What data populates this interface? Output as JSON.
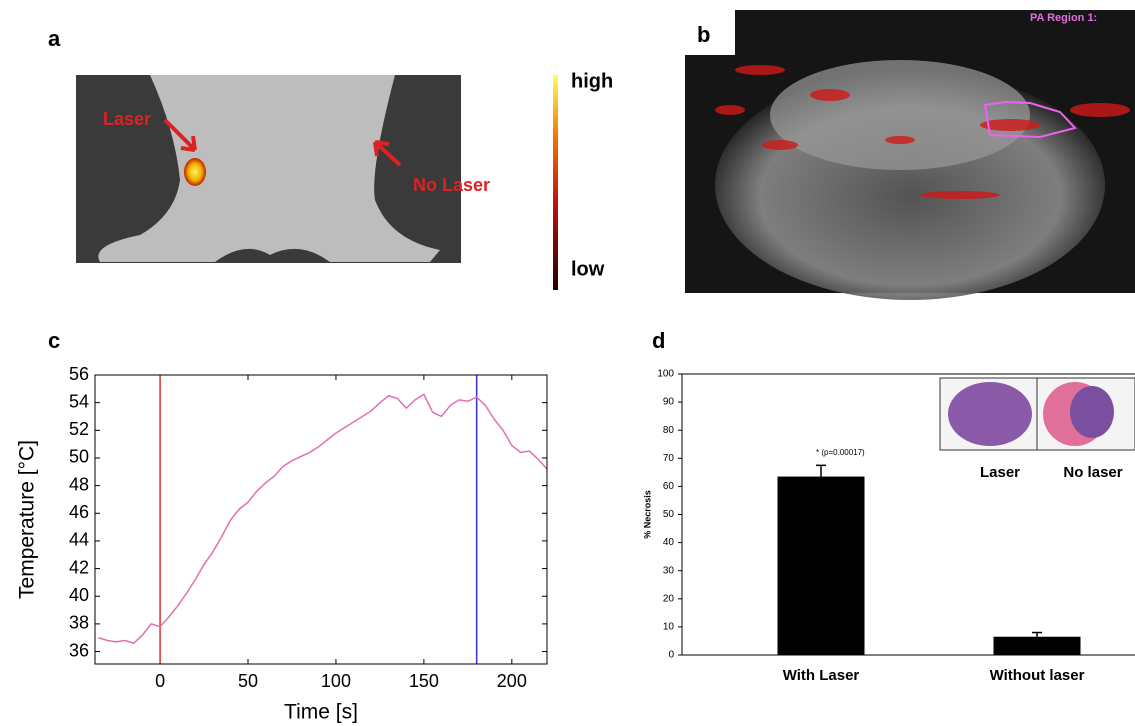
{
  "panel_labels": [
    "a",
    "b",
    "c",
    "d"
  ],
  "panel_a": {
    "arrow_labels": [
      "Laser",
      "No Laser"
    ],
    "colorbar_labels": [
      "high",
      "low"
    ]
  },
  "panel_b": {
    "region_label": "PA Region 1:"
  },
  "chart_data": [
    {
      "type": "line",
      "xlabel": "Time [s]",
      "ylabel": "Temperature [°C]",
      "xlim": [
        -37,
        220
      ],
      "ylim": [
        35.1,
        56
      ],
      "xticks": [
        0,
        50,
        100,
        150,
        200
      ],
      "yticks": [
        36,
        38,
        40,
        42,
        44,
        46,
        48,
        50,
        52,
        54,
        56
      ],
      "color": "#e070b0",
      "x": [
        -35,
        -30,
        -25,
        -20,
        -15,
        -10,
        -5,
        0,
        5,
        10,
        15,
        20,
        25,
        30,
        35,
        40,
        45,
        50,
        55,
        60,
        65,
        70,
        75,
        80,
        85,
        90,
        95,
        100,
        105,
        110,
        115,
        120,
        125,
        130,
        135,
        140,
        145,
        150,
        155,
        160,
        165,
        170,
        175,
        180,
        185,
        190,
        195,
        200,
        205,
        210,
        215,
        220
      ],
      "values": [
        37.0,
        36.8,
        36.7,
        36.8,
        36.6,
        37.2,
        38.0,
        37.8,
        38.5,
        39.3,
        40.2,
        41.2,
        42.3,
        43.2,
        44.3,
        45.5,
        46.3,
        46.8,
        47.6,
        48.2,
        48.7,
        49.4,
        49.8,
        50.1,
        50.4,
        50.8,
        51.3,
        51.8,
        52.2,
        52.6,
        53.0,
        53.4,
        54.0,
        54.5,
        54.3,
        53.6,
        54.2,
        54.6,
        53.3,
        53.0,
        53.8,
        54.2,
        54.1,
        54.4,
        53.8,
        52.8,
        52.0,
        50.9,
        50.4,
        50.5,
        49.9,
        49.2
      ],
      "vlines": [
        {
          "x": 0,
          "color": "#e03030"
        },
        {
          "x": 180,
          "color": "#3030d0"
        }
      ]
    },
    {
      "type": "bar",
      "ylabel": "% Necrosis",
      "categories": [
        "With Laser",
        "Without laser"
      ],
      "values": [
        63.5,
        6.5
      ],
      "errors": [
        4,
        1.5
      ],
      "color": "#000000",
      "ylim": [
        0,
        100
      ],
      "yticks": [
        0,
        10,
        20,
        30,
        40,
        50,
        60,
        70,
        80,
        90,
        100
      ],
      "annotation": "*  (p=0.00017)",
      "inset_labels": [
        "Laser",
        "No laser"
      ]
    }
  ]
}
